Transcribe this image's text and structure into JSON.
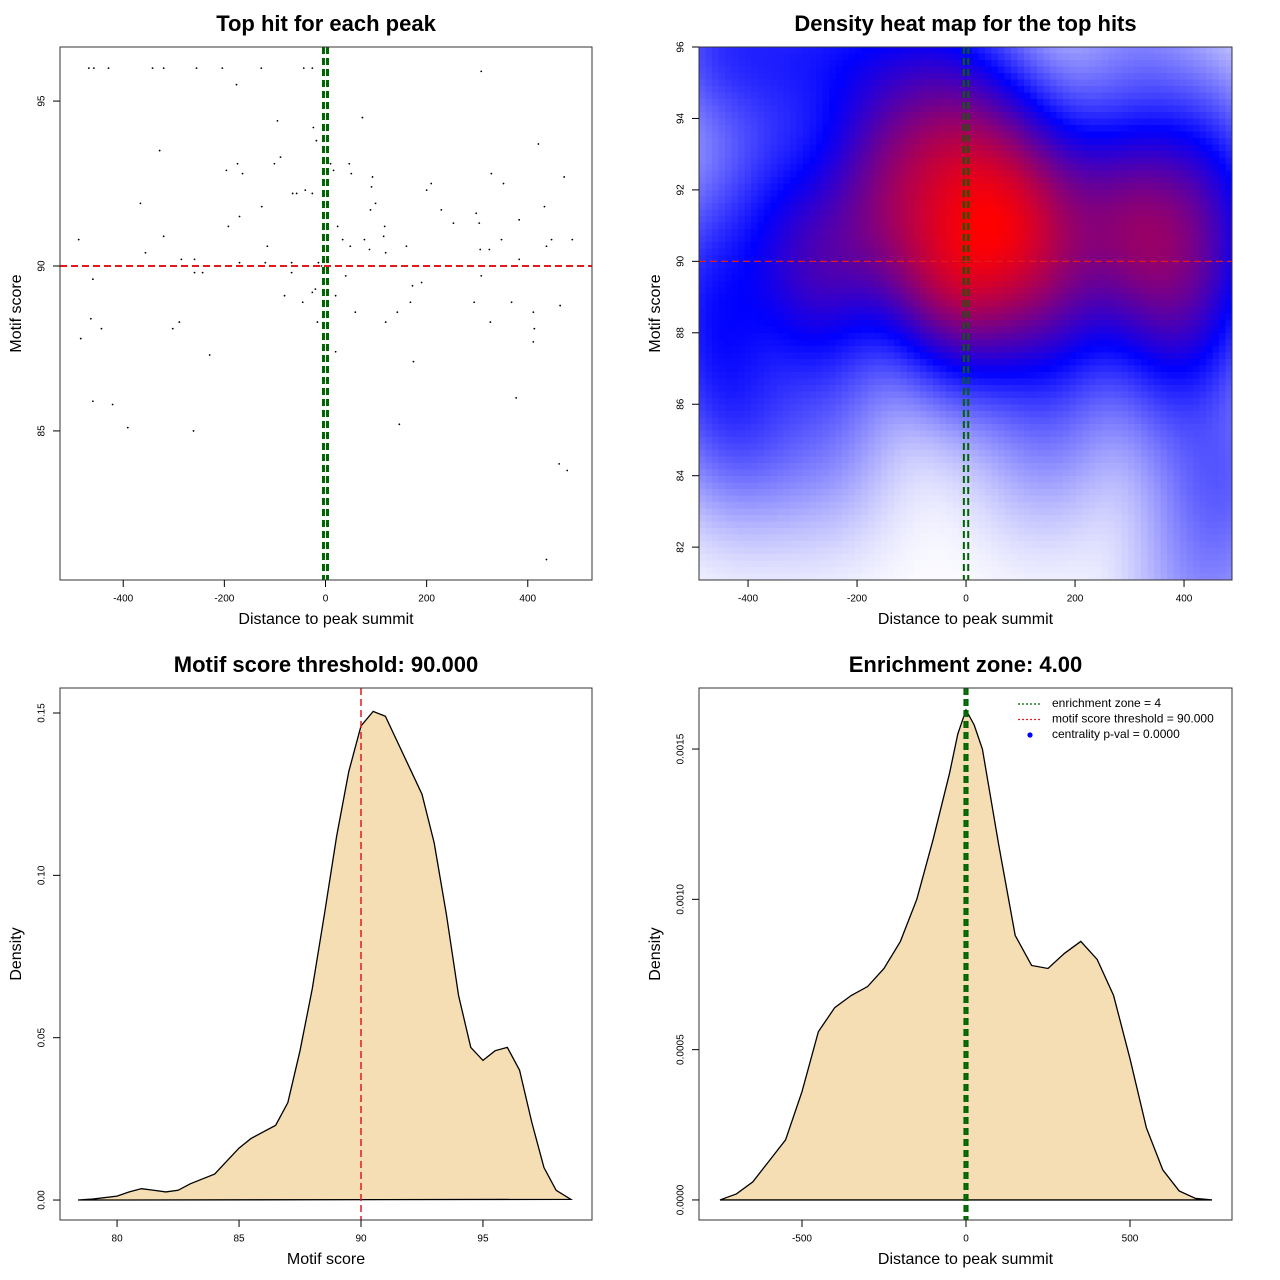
{
  "chart_data": [
    {
      "type": "scatter",
      "title": "Top hit for each peak",
      "xlabel": "Distance to peak summit",
      "ylabel": "Motif score",
      "color": "#000000",
      "x": [
        -468,
        -458,
        -429,
        -342,
        -320,
        -255,
        -204,
        -127,
        -43,
        -26,
        -176,
        -95,
        73,
        -24,
        308,
        -328,
        -18,
        421,
        -174,
        -101,
        -89,
        -196,
        -164,
        10,
        47,
        16,
        51,
        91,
        93,
        328,
        352,
        472,
        209,
        200,
        -65,
        -57,
        -40,
        -26,
        -366,
        -126,
        89,
        99,
        229,
        253,
        298,
        433,
        -170,
        383,
        -192,
        24,
        304,
        117,
        -320,
        -488,
        -115,
        34,
        77,
        49,
        115,
        160,
        -356,
        87,
        119,
        306,
        324,
        348,
        437,
        447,
        488,
        -285,
        -259,
        -119,
        -170,
        -67,
        -14,
        -8,
        383,
        -67,
        -259,
        -243,
        40,
        308,
        -460,
        190,
        172,
        -20,
        -26,
        -81,
        20,
        -45,
        168,
        294,
        368,
        464,
        59,
        142,
        411,
        -464,
        -289,
        -16,
        119,
        326,
        -443,
        -302,
        413,
        -484,
        411,
        20,
        -229,
        174,
        377,
        -460,
        -421,
        146,
        -391,
        -261,
        462,
        478,
        437
      ],
      "values": [
        96,
        96,
        96,
        96,
        96,
        96,
        96,
        96,
        96,
        96,
        95.5,
        94.4,
        94.5,
        94.2,
        95.9,
        93.5,
        93.8,
        93.7,
        93.1,
        93.1,
        93.3,
        92.9,
        92.8,
        93.1,
        93.1,
        92.9,
        92.8,
        92.4,
        92.7,
        92.8,
        92.5,
        92.7,
        92.5,
        92.3,
        92.2,
        92.2,
        92.3,
        92.2,
        91.9,
        91.8,
        91.7,
        91.9,
        91.7,
        91.3,
        91.6,
        91.8,
        91.5,
        91.4,
        91.2,
        91.2,
        91.3,
        91.2,
        90.9,
        90.8,
        90.6,
        90.8,
        90.8,
        90.6,
        90.9,
        90.6,
        90.4,
        90.5,
        90.4,
        90.5,
        90.5,
        90.8,
        90.6,
        90.8,
        90.8,
        90.2,
        90.2,
        90.1,
        90.1,
        90.1,
        90.1,
        90,
        90.2,
        89.8,
        89.8,
        89.8,
        89.7,
        89.7,
        89.6,
        89.5,
        89.4,
        89.3,
        89.2,
        89.1,
        89.1,
        88.9,
        88.9,
        88.9,
        88.9,
        88.8,
        88.6,
        88.6,
        88.6,
        88.4,
        88.3,
        88.3,
        88.3,
        88.3,
        88.1,
        88.1,
        88.1,
        87.8,
        87.7,
        87.4,
        87.3,
        87.1,
        86,
        85.9,
        85.8,
        85.2,
        85.1,
        85,
        84,
        83.8,
        81.1
      ],
      "xlim": [
        -525,
        527
      ],
      "ylim": [
        80.48,
        96.64
      ],
      "xticks": [
        -400,
        -200,
        0,
        200,
        400
      ],
      "yticks": [
        85,
        90,
        95
      ],
      "vlines": {
        "values": [
          -4,
          4
        ],
        "color": "#006400"
      },
      "hlines": {
        "values": [
          90
        ],
        "color": "#e31a1c"
      }
    },
    {
      "type": "heatmap",
      "title": "Density heat map for the top hits",
      "xlabel": "Distance to peak summit",
      "ylabel": "Motif score",
      "colors": [
        "#ffffff",
        "#0000ff",
        "#ff0000"
      ],
      "xlim": [
        -490,
        488
      ],
      "ylim": [
        81.08,
        96
      ],
      "xticks": [
        -400,
        -200,
        0,
        200,
        400
      ],
      "yticks": [
        82,
        84,
        86,
        88,
        90,
        92,
        94,
        96
      ],
      "vlines": {
        "values": [
          -4,
          4
        ],
        "color": "#006400"
      },
      "hlines": {
        "values": [
          90
        ],
        "color": "#e31a1c"
      }
    },
    {
      "type": "area",
      "title": "Motif score threshold: 90.000",
      "xlabel": "Motif score",
      "ylabel": "Density",
      "color": "#000000",
      "fill": "#f5deb3",
      "x": [
        78.4,
        79,
        80,
        80.5,
        81,
        81.5,
        82,
        82.5,
        83,
        84,
        84.5,
        85,
        85.5,
        86,
        86.5,
        87,
        87.5,
        88,
        88.5,
        89,
        89.5,
        90,
        90.5,
        91,
        91.5,
        92,
        92.5,
        93,
        93.5,
        94,
        94.5,
        95,
        95.5,
        96,
        96.5,
        97,
        97.5,
        98,
        98.6
      ],
      "values": [
        0,
        0.0003,
        0.0012,
        0.0025,
        0.0035,
        0.003,
        0.0025,
        0.003,
        0.005,
        0.008,
        0.012,
        0.016,
        0.019,
        0.021,
        0.023,
        0.03,
        0.046,
        0.065,
        0.088,
        0.112,
        0.132,
        0.146,
        0.1505,
        0.149,
        0.141,
        0.133,
        0.125,
        0.11,
        0.088,
        0.063,
        0.047,
        0.043,
        0.046,
        0.047,
        0.04,
        0.024,
        0.01,
        0.003,
        0.0002
      ],
      "xlim": [
        77.66,
        99.47
      ],
      "ylim": [
        -0.00615,
        0.1577
      ],
      "xticks": [
        80,
        85,
        90,
        95
      ],
      "yticks": [
        {
          "value": 0,
          "label": "0.00"
        },
        0.05,
        {
          "value": 0.1,
          "label": "0.10"
        },
        0.15
      ],
      "vlines": {
        "values": [
          90
        ],
        "color": "#e31a1c"
      }
    },
    {
      "type": "area",
      "title": "Enrichment zone: 4.00",
      "xlabel": "Distance to peak summit",
      "ylabel": "Density",
      "color": "#000000",
      "fill": "#f5deb3",
      "x": [
        -750,
        -700,
        -650,
        -600,
        -550,
        -500,
        -450,
        -400,
        -350,
        -300,
        -250,
        -200,
        -150,
        -100,
        -50,
        -25,
        0,
        25,
        50,
        100,
        150,
        200,
        250,
        300,
        350,
        400,
        450,
        500,
        550,
        600,
        650,
        700,
        750
      ],
      "values": [
        0,
        2e-05,
        6e-05,
        0.00013,
        0.0002,
        0.00036,
        0.00056,
        0.00064,
        0.00068,
        0.00071,
        0.00077,
        0.00086,
        0.001,
        0.0012,
        0.00142,
        0.00155,
        0.00163,
        0.00158,
        0.0015,
        0.00118,
        0.00088,
        0.00078,
        0.00077,
        0.00082,
        0.00086,
        0.0008,
        0.00068,
        0.00047,
        0.00024,
        0.0001,
        3e-05,
        5e-06,
        0
      ],
      "xlim": [
        -814,
        811
      ],
      "ylim": [
        -6.67e-05,
        0.001703
      ],
      "xticks": [
        -500,
        0,
        500
      ],
      "yticks": [
        {
          "value": 0,
          "label": "0.0000"
        },
        0.0005,
        {
          "value": 0.001,
          "label": "0.0010"
        },
        0.0015
      ],
      "vlines": {
        "values": [
          -4,
          4
        ],
        "color": "#006400"
      },
      "legend": {
        "position": "topright",
        "items": [
          {
            "label": "enrichment zone = 4",
            "color": "#006400",
            "marker": "dotted"
          },
          {
            "label": "motif score threshold = 90.000",
            "color": "#e31a1c",
            "marker": "dotted"
          },
          {
            "label": "centrality p-val = 0.0000",
            "color": "#0000ff",
            "marker": "point"
          }
        ]
      }
    }
  ]
}
